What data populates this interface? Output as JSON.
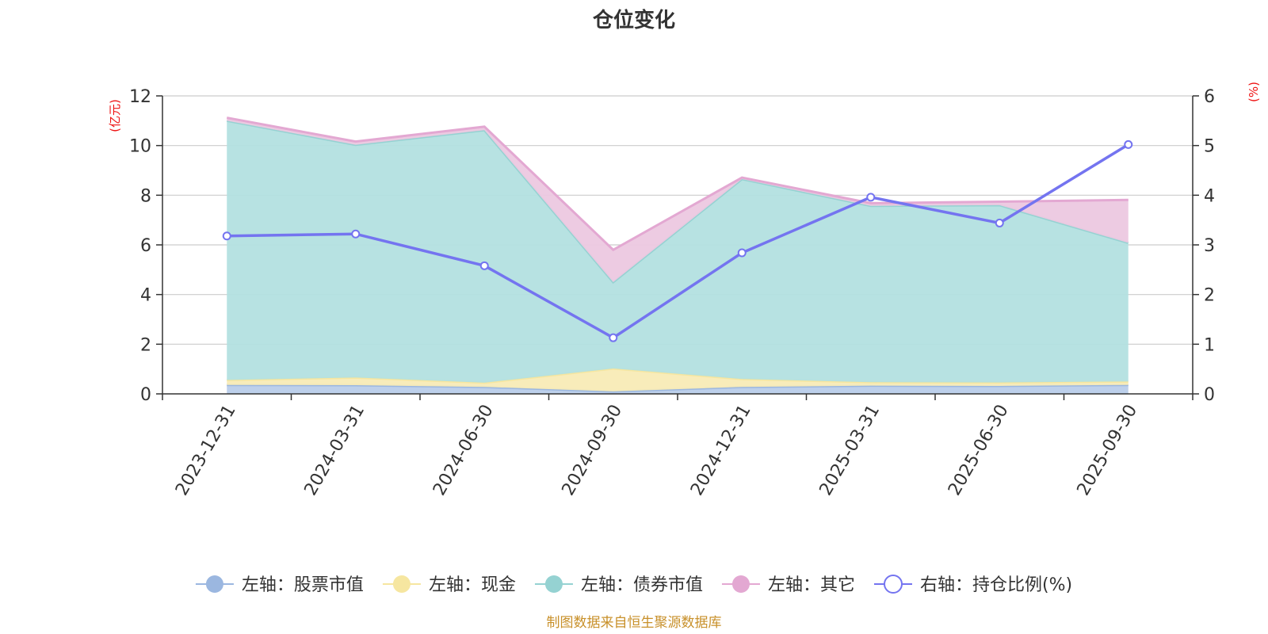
{
  "chart_data": {
    "type": "area",
    "title": "仓位变化",
    "categories": [
      "2023-12-31",
      "2024-03-31",
      "2024-06-30",
      "2024-09-30",
      "2024-12-31",
      "2025-03-31",
      "2025-06-30",
      "2025-09-30"
    ],
    "left_axis": {
      "unit": "(亿元)",
      "ylim": [
        0,
        12
      ],
      "ticks": [
        0,
        2,
        4,
        6,
        8,
        10,
        12
      ]
    },
    "right_axis": {
      "unit": "(%)",
      "ylim": [
        0,
        6
      ],
      "ticks": [
        0,
        1,
        2,
        3,
        4,
        5,
        6
      ]
    },
    "grid": true,
    "legend_position": "bottom",
    "series": [
      {
        "name": "左轴：股票市值",
        "axis": "left",
        "stacked": true,
        "type": "area",
        "color": "#9bb7e0",
        "fill": "#b9cdea",
        "values": [
          0.36,
          0.35,
          0.28,
          0.1,
          0.28,
          0.33,
          0.32,
          0.36
        ]
      },
      {
        "name": "左轴：现金",
        "axis": "left",
        "stacked": true,
        "type": "area",
        "color": "#f6e6a0",
        "fill": "#f8ebb6",
        "values": [
          0.2,
          0.31,
          0.17,
          0.92,
          0.32,
          0.14,
          0.14,
          0.14
        ]
      },
      {
        "name": "左轴：债券市值",
        "axis": "left",
        "stacked": true,
        "type": "area",
        "color": "#95d2d2",
        "fill": "#b3e0e0",
        "values": [
          10.44,
          9.37,
          10.17,
          3.48,
          8.05,
          7.1,
          7.14,
          5.58
        ]
      },
      {
        "name": "左轴：其它",
        "axis": "left",
        "stacked": true,
        "type": "area",
        "color": "#e3a8d2",
        "fill": "#ecc8e0",
        "values": [
          0.12,
          0.13,
          0.14,
          1.3,
          0.06,
          0.11,
          0.14,
          1.73
        ]
      },
      {
        "name": "右轴：持仓比例(%)",
        "axis": "right",
        "stacked": false,
        "type": "line",
        "color": "#7474f0",
        "values": [
          3.18,
          3.22,
          2.58,
          1.13,
          2.84,
          3.96,
          3.44,
          5.02
        ]
      }
    ],
    "source_note": "制图数据来自恒生聚源数据库"
  }
}
